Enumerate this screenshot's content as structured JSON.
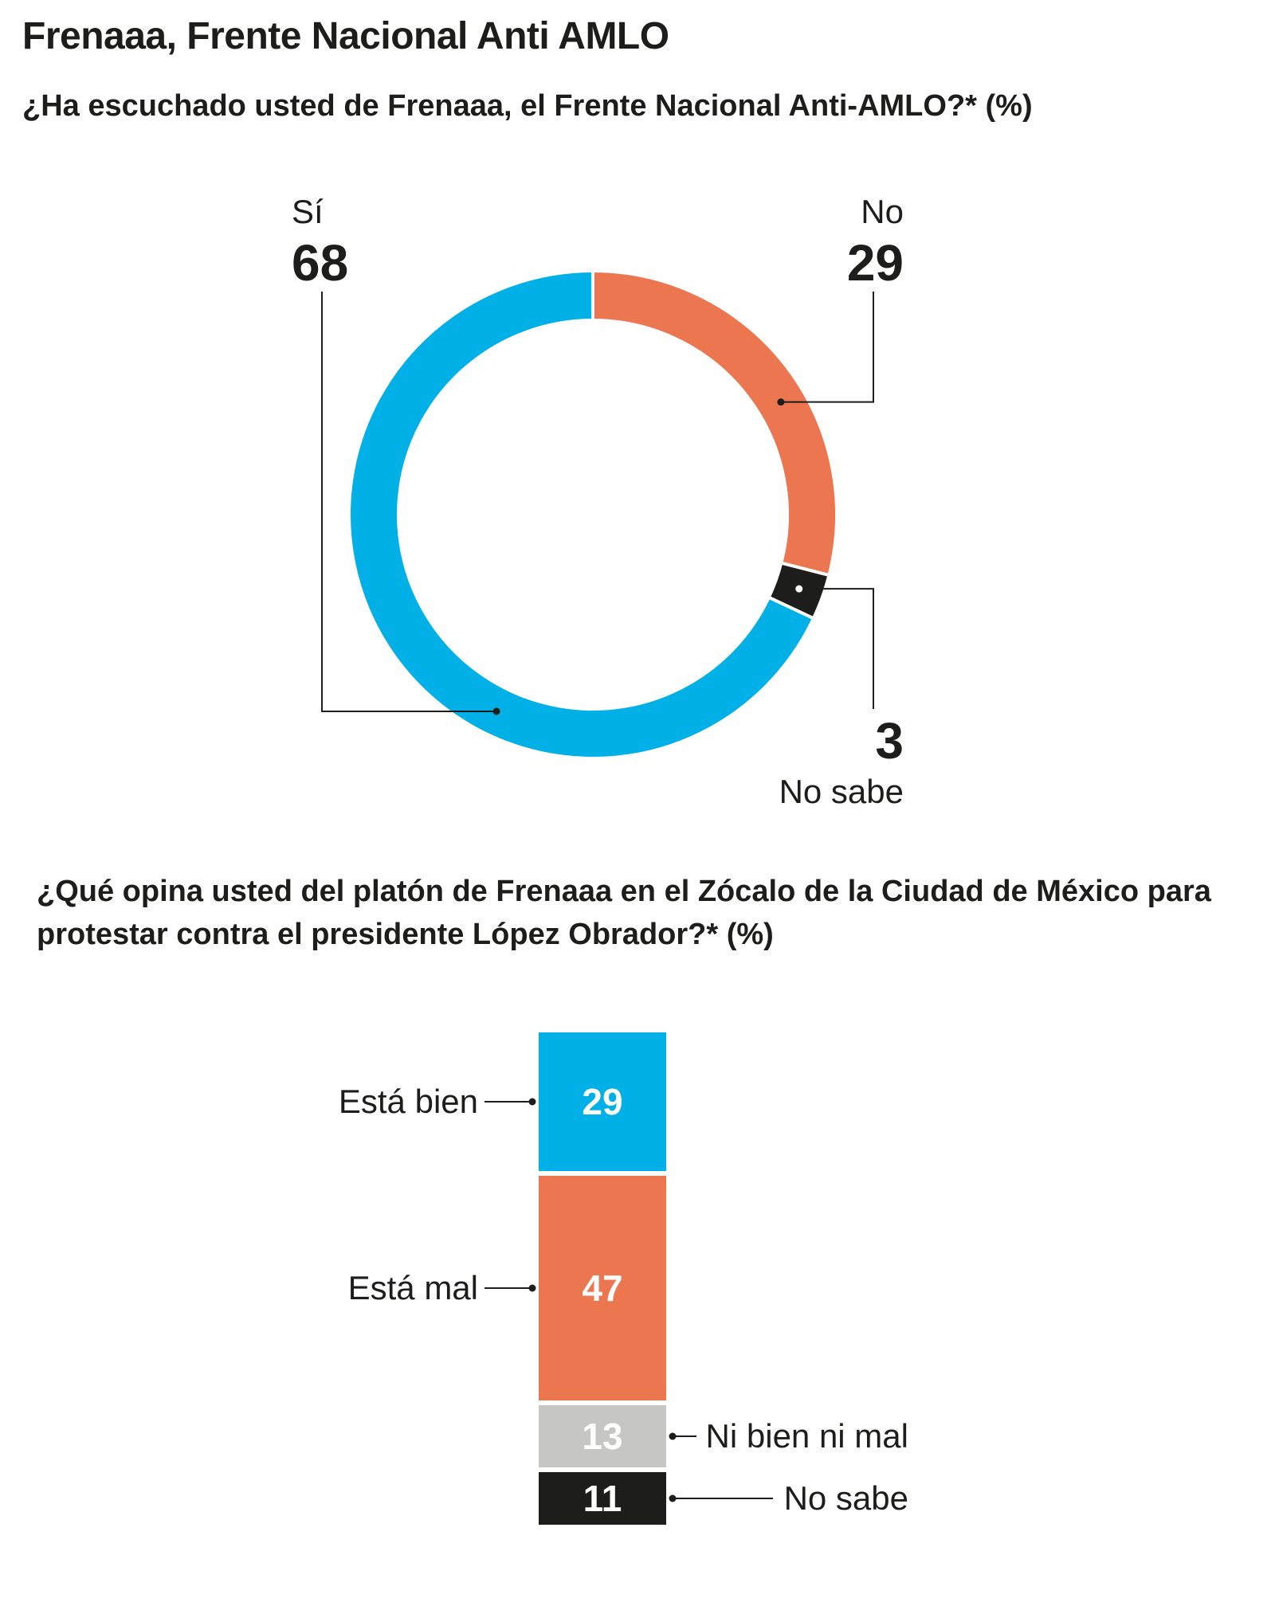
{
  "title": "Frenaaa, Frente Nacional Anti AMLO",
  "question1": "¿Ha escuchado usted de Frenaaa, el Frente Nacional Anti-AMLO?*  (%)",
  "question2": "¿Qué opina usted del platón de Frenaaa en el Zócalo de la Ciudad de México para protestar contra el presidente López Obrador?* (%)",
  "chart_data": [
    {
      "type": "pie",
      "variant": "donut",
      "categories": [
        "No",
        "No sabe",
        "Sí"
      ],
      "values": [
        29,
        3,
        68
      ],
      "colors": [
        "#ec7650",
        "#1d1d1b",
        "#00b0e6"
      ]
    },
    {
      "type": "bar",
      "variant": "stacked-vertical",
      "categories": [
        "Está bien",
        "Está mal",
        "Ni bien ni mal",
        "No sabe"
      ],
      "values": [
        29,
        47,
        13,
        11
      ],
      "colors": [
        "#00b0e6",
        "#ec7650",
        "#c6c6c5",
        "#1d1d1b"
      ],
      "value_text_colors": [
        "#ffffff",
        "#ffffff",
        "#ffffff",
        "#ffffff"
      ],
      "label_side": [
        "left",
        "left",
        "right",
        "right"
      ]
    }
  ]
}
